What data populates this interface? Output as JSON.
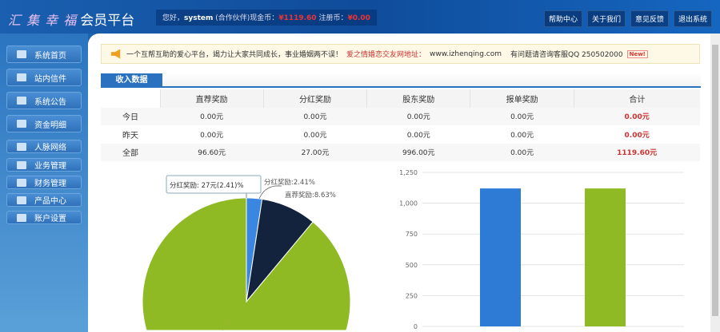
{
  "header": {
    "logo_script": "汇 集 幸 福",
    "logo_text": "会员平台",
    "greeting": "您好，",
    "username": "system",
    "role": "(合作伙伴)",
    "cash_label": "现金币：",
    "cash_value": "¥1119.60",
    "reg_label": "注册币：",
    "reg_value": "¥0.00",
    "nav": [
      "帮助中心",
      "关于我们",
      "意见反馈",
      "退出系统"
    ]
  },
  "sidebar": {
    "items": [
      {
        "label": "系统首页",
        "icon": "home-icon"
      },
      {
        "label": "站内信件",
        "icon": "mail-icon"
      },
      {
        "label": "系统公告",
        "icon": "calendar-icon"
      },
      {
        "label": "资金明细",
        "icon": "money-icon"
      },
      {
        "label": "人脉网络",
        "icon": "user-icon"
      },
      {
        "label": "业务管理",
        "icon": "contact-icon"
      },
      {
        "label": "财务管理",
        "icon": "clock-icon"
      },
      {
        "label": "产品中心",
        "icon": "cart-icon"
      },
      {
        "label": "账户设置",
        "icon": "gear-icon"
      }
    ]
  },
  "notice": {
    "text": "一个互帮互助的爱心平台，竭力让大家共同成长，事业婚姻两不误！",
    "link_label": "爱之情婚恋交友网地址：",
    "url": "www.izhenqing.com",
    "contact": "有问题请咨询客服QQ 250502000",
    "badge": "New!"
  },
  "income": {
    "tab": "收入数据",
    "columns": [
      "",
      "直荐奖励",
      "分红奖励",
      "股东奖励",
      "报单奖励",
      "合计"
    ],
    "rows": [
      [
        "今日",
        "0.00元",
        "0.00元",
        "0.00元",
        "0.00元",
        "0.00元"
      ],
      [
        "昨天",
        "0.00元",
        "0.00元",
        "0.00元",
        "0.00元",
        "0.00元"
      ],
      [
        "全部",
        "96.60元",
        "27.00元",
        "996.00元",
        "0.00元",
        "1119.60元"
      ]
    ]
  },
  "chart_data": [
    {
      "type": "pie",
      "slices": [
        {
          "label": "分红奖励",
          "value": 27,
          "percent": 2.41,
          "color": "#3a86e0"
        },
        {
          "label": "直荐奖励",
          "value": 96.6,
          "percent": 8.63,
          "color": "#14233d"
        },
        {
          "label": "股东奖励",
          "value": 996,
          "percent": 88.96,
          "color": "#8fba24"
        }
      ],
      "data_labels": [
        "分红奖励:2.41%",
        "直荐奖励:8.63%"
      ],
      "tooltip": "分红奖励: 27元(2.41)%"
    },
    {
      "type": "bar",
      "values": [
        1119.6,
        1119.6
      ],
      "colors": [
        "#2e7bd6",
        "#8fba24"
      ],
      "ylim": [
        0,
        1250
      ],
      "yticks": [
        "0",
        "250",
        "500",
        "750",
        "1,000",
        "1,250"
      ],
      "grid": true
    }
  ]
}
